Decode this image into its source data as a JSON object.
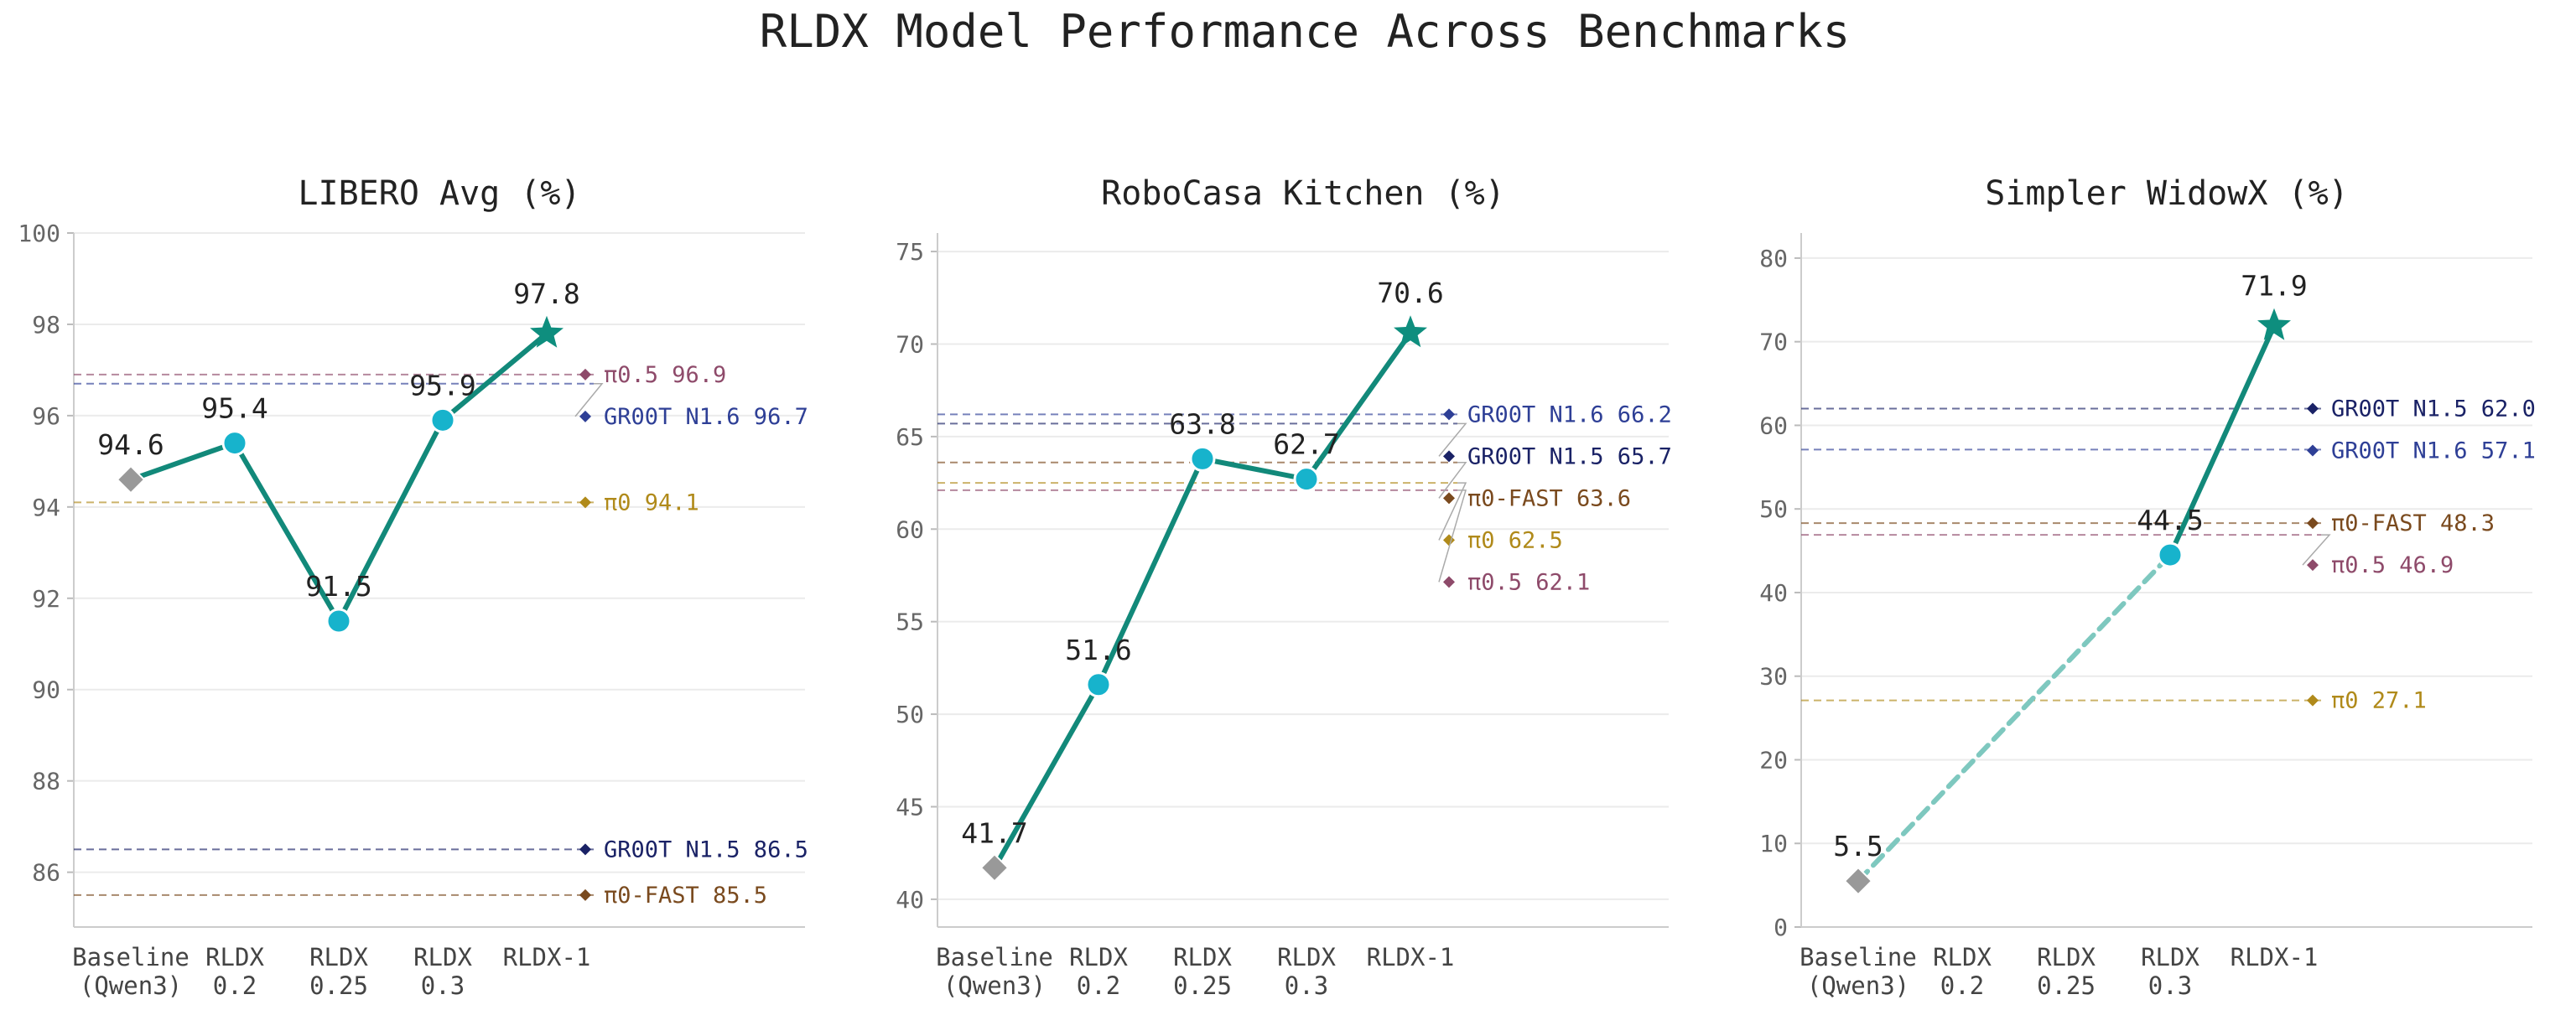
{
  "title": "RLDX Model Performance Across Benchmarks",
  "colors": {
    "rldx_line": "#12897a",
    "rldx_marker": "#17b3cc",
    "rldx_star": "#0e8e7e",
    "baseline_marker": "#999999",
    "dashed_link": "#7ec8bf"
  },
  "chart_data": [
    {
      "type": "line",
      "title": "LIBERO Avg (%)",
      "categories": [
        "Baseline\n(Qwen3)",
        "RLDX\n0.2",
        "RLDX\n0.25",
        "RLDX\n0.3",
        "RLDX-1"
      ],
      "ylim": [
        84.8,
        100
      ],
      "yticks": [
        86,
        88,
        90,
        92,
        94,
        96,
        98,
        100
      ],
      "grid": true,
      "series": [
        {
          "values": [
            94.6,
            95.4,
            91.5,
            95.9,
            97.8
          ],
          "labels": [
            "94.6",
            "95.4",
            "91.5",
            "95.9",
            "97.8"
          ]
        }
      ],
      "baseline_link": "solid",
      "references": [
        {
          "name": "π0.5",
          "value": 96.9,
          "label": "96.9",
          "color": "#8e4a6a"
        },
        {
          "name": "GR00T N1.6",
          "value": 96.7,
          "label": "96.7",
          "color": "#2e3f96"
        },
        {
          "name": "π0",
          "value": 94.1,
          "label": "94.1",
          "color": "#b08a1a"
        },
        {
          "name": "GR00T N1.5",
          "value": 86.5,
          "label": "86.5",
          "color": "#1a2266"
        },
        {
          "name": "π0-FAST",
          "value": 85.5,
          "label": "85.5",
          "color": "#7a4a1e"
        }
      ]
    },
    {
      "type": "line",
      "title": "RoboCasa Kitchen (%)",
      "categories": [
        "Baseline\n(Qwen3)",
        "RLDX\n0.2",
        "RLDX\n0.25",
        "RLDX\n0.3",
        "RLDX-1"
      ],
      "ylim": [
        38.5,
        76
      ],
      "yticks": [
        40,
        45,
        50,
        55,
        60,
        65,
        70,
        75
      ],
      "grid": true,
      "series": [
        {
          "values": [
            41.7,
            51.6,
            63.8,
            62.7,
            70.6
          ],
          "labels": [
            "41.7",
            "51.6",
            "63.8",
            "62.7",
            "70.6"
          ]
        }
      ],
      "baseline_link": "solid",
      "references": [
        {
          "name": "GR00T N1.6",
          "value": 66.2,
          "label": "66.2",
          "color": "#2e3f96"
        },
        {
          "name": "GR00T N1.5",
          "value": 65.7,
          "label": "65.7",
          "color": "#1a2266"
        },
        {
          "name": "π0-FAST",
          "value": 63.6,
          "label": "63.6",
          "color": "#7a4a1e"
        },
        {
          "name": "π0",
          "value": 62.5,
          "label": "62.5",
          "color": "#b08a1a"
        },
        {
          "name": "π0.5",
          "value": 62.1,
          "label": "62.1",
          "color": "#8e4a6a"
        }
      ]
    },
    {
      "type": "line",
      "title": "Simpler WidowX (%)",
      "categories": [
        "Baseline\n(Qwen3)",
        "RLDX\n0.2",
        "RLDX\n0.25",
        "RLDX\n0.3",
        "RLDX-1"
      ],
      "ylim": [
        0,
        83
      ],
      "yticks": [
        0,
        10,
        20,
        30,
        40,
        50,
        60,
        70,
        80
      ],
      "grid": true,
      "series": [
        {
          "values": [
            5.5,
            null,
            null,
            44.5,
            71.9
          ],
          "labels": [
            "5.5",
            "",
            "",
            "44.5",
            "71.9"
          ]
        }
      ],
      "baseline_link": "dashed",
      "references": [
        {
          "name": "GR00T N1.5",
          "value": 62.0,
          "label": "62.0",
          "color": "#1a2266"
        },
        {
          "name": "GR00T N1.6",
          "value": 57.1,
          "label": "57.1",
          "color": "#2e3f96"
        },
        {
          "name": "π0-FAST",
          "value": 48.3,
          "label": "48.3",
          "color": "#7a4a1e"
        },
        {
          "name": "π0.5",
          "value": 46.9,
          "label": "46.9",
          "color": "#8e4a6a"
        },
        {
          "name": "π0",
          "value": 27.1,
          "label": "27.1",
          "color": "#b08a1a"
        }
      ]
    }
  ]
}
